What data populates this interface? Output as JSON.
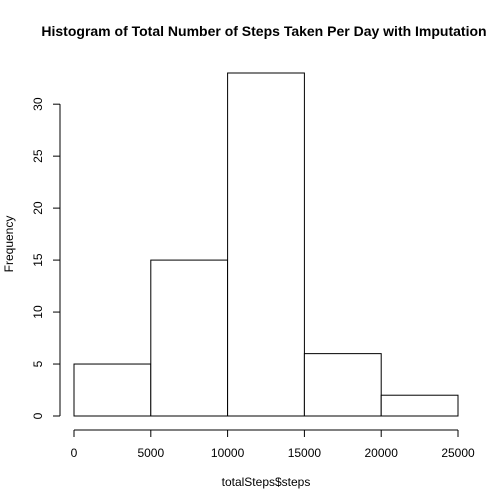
{
  "chart_data": {
    "type": "bar",
    "title": "Histogram of Total Number of Steps Taken Per Day with Imputation",
    "xlabel": "totalSteps$steps",
    "ylabel": "Frequency",
    "bins": [
      {
        "from": 0,
        "to": 5000,
        "count": 5
      },
      {
        "from": 5000,
        "to": 10000,
        "count": 15
      },
      {
        "from": 10000,
        "to": 15000,
        "count": 33
      },
      {
        "from": 15000,
        "to": 20000,
        "count": 6
      },
      {
        "from": 20000,
        "to": 25000,
        "count": 2
      }
    ],
    "xlim": [
      0,
      25000
    ],
    "ylim": [
      0,
      33
    ],
    "x_ticks": [
      0,
      5000,
      10000,
      15000,
      20000,
      25000
    ],
    "y_ticks": [
      0,
      5,
      10,
      15,
      20,
      25,
      30
    ],
    "grid": false,
    "colors": {
      "bar_fill": "#ffffff",
      "bar_stroke": "#000000",
      "axis": "#000000"
    }
  }
}
